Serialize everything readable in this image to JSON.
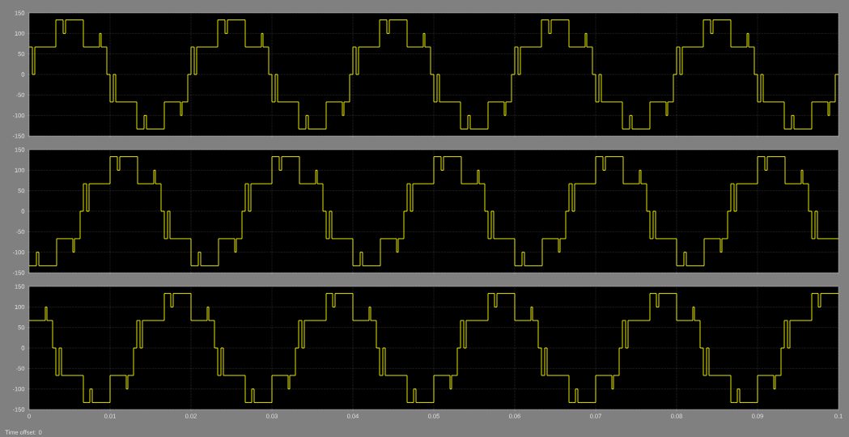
{
  "chart_data": [
    {
      "type": "step",
      "tick_labels": "y",
      "grid": true,
      "xlim": [
        0,
        0.1
      ],
      "ylim": [
        -150,
        150
      ],
      "xticks": [
        0,
        0.01,
        0.02,
        0.03,
        0.04,
        0.05,
        0.06,
        0.07,
        0.08,
        0.09,
        0.1
      ],
      "yticks": [
        -150,
        -100,
        -50,
        0,
        50,
        100,
        150
      ],
      "series": [
        {
          "color": "#ffff00",
          "x": [
            0,
            0.0004,
            0.0007,
            0.0033,
            0.0042,
            0.0045,
            0.0067,
            0.0087,
            0.0089,
            0.0096,
            0.01,
            0.0104,
            0.0107,
            0.0133,
            0.0142,
            0.0145,
            0.0167,
            0.0187,
            0.0189,
            0.0196,
            0.02,
            0.0204,
            0.0207,
            0.0233,
            0.0242,
            0.0245,
            0.0267,
            0.0287,
            0.0289,
            0.0296,
            0.03,
            0.0304,
            0.0307,
            0.0333,
            0.0342,
            0.0345,
            0.0367,
            0.0387,
            0.0389,
            0.0396,
            0.04,
            0.0404,
            0.0407,
            0.0433,
            0.0442,
            0.0445,
            0.0467,
            0.0487,
            0.0489,
            0.0496,
            0.05,
            0.0504,
            0.0507,
            0.0533,
            0.0542,
            0.0545,
            0.0567,
            0.0587,
            0.0589,
            0.0596,
            0.06,
            0.0604,
            0.0607,
            0.0633,
            0.0642,
            0.0645,
            0.0667,
            0.0687,
            0.0689,
            0.0696,
            0.07,
            0.0704,
            0.0707,
            0.0733,
            0.0742,
            0.0745,
            0.0767,
            0.0787,
            0.0789,
            0.0796,
            0.08,
            0.0804,
            0.0807,
            0.0833,
            0.0842,
            0.0845,
            0.0867,
            0.0887,
            0.0889,
            0.0896,
            0.09,
            0.0904,
            0.0907,
            0.0933,
            0.0942,
            0.0945,
            0.0967,
            0.0987,
            0.0989,
            0.0996,
            0.1
          ],
          "values": [
            67,
            0,
            67,
            133,
            100,
            133,
            67,
            100,
            67,
            0,
            -67,
            0,
            -67,
            -133,
            -100,
            -133,
            -67,
            -100,
            -67,
            0,
            67,
            0,
            67,
            133,
            100,
            133,
            67,
            100,
            67,
            0,
            -67,
            0,
            -67,
            -133,
            -100,
            -133,
            -67,
            -100,
            -67,
            0,
            67,
            0,
            67,
            133,
            100,
            133,
            67,
            100,
            67,
            0,
            -67,
            0,
            -67,
            -133,
            -100,
            -133,
            -67,
            -100,
            -67,
            0,
            67,
            0,
            67,
            133,
            100,
            133,
            67,
            100,
            67,
            0,
            -67,
            0,
            -67,
            -133,
            -100,
            -133,
            -67,
            -100,
            -67,
            0,
            67,
            0,
            67,
            133,
            100,
            133,
            67,
            100,
            67,
            0,
            -67,
            0,
            -67,
            -133,
            -100,
            -133,
            -67,
            -100,
            -67,
            0,
            0
          ]
        }
      ]
    },
    {
      "type": "step",
      "tick_labels": "y",
      "grid": true,
      "xlim": [
        0,
        0.1
      ],
      "ylim": [
        -150,
        150
      ],
      "xticks": [
        0,
        0.01,
        0.02,
        0.03,
        0.04,
        0.05,
        0.06,
        0.07,
        0.08,
        0.09,
        0.1
      ],
      "yticks": [
        -150,
        -100,
        -50,
        0,
        50,
        100,
        150
      ],
      "series": [
        {
          "color": "#ffff00",
          "x": [
            0,
            0.0009,
            0.0012,
            0.0034,
            0.0054,
            0.0056,
            0.0063,
            0.0067,
            0.0071,
            0.0074,
            0.01,
            0.0109,
            0.0112,
            0.0134,
            0.0154,
            0.0156,
            0.0163,
            0.0167,
            0.0171,
            0.0174,
            0.02,
            0.0209,
            0.0212,
            0.0234,
            0.0254,
            0.0256,
            0.0263,
            0.0267,
            0.0271,
            0.0274,
            0.03,
            0.0309,
            0.0312,
            0.0334,
            0.0354,
            0.0356,
            0.0363,
            0.0367,
            0.0371,
            0.0374,
            0.04,
            0.0409,
            0.0412,
            0.0434,
            0.0454,
            0.0456,
            0.0463,
            0.0467,
            0.0471,
            0.0474,
            0.05,
            0.0509,
            0.0512,
            0.0534,
            0.0554,
            0.0556,
            0.0563,
            0.0567,
            0.0571,
            0.0574,
            0.06,
            0.0609,
            0.0612,
            0.0634,
            0.0654,
            0.0656,
            0.0663,
            0.0667,
            0.0671,
            0.0674,
            0.07,
            0.0709,
            0.0712,
            0.0734,
            0.0754,
            0.0756,
            0.0763,
            0.0767,
            0.0771,
            0.0774,
            0.08,
            0.0809,
            0.0812,
            0.0834,
            0.0854,
            0.0856,
            0.0863,
            0.0867,
            0.0871,
            0.0874,
            0.09,
            0.0909,
            0.0912,
            0.0934,
            0.0954,
            0.0956,
            0.0963,
            0.0967,
            0.0971,
            0.0974,
            0.1
          ],
          "values": [
            -133,
            -100,
            -133,
            -67,
            -100,
            -67,
            0,
            67,
            0,
            67,
            133,
            100,
            133,
            67,
            100,
            67,
            0,
            -67,
            0,
            -67,
            -133,
            -100,
            -133,
            -67,
            -100,
            -67,
            0,
            67,
            0,
            67,
            133,
            100,
            133,
            67,
            100,
            67,
            0,
            -67,
            0,
            -67,
            -133,
            -100,
            -133,
            -67,
            -100,
            -67,
            0,
            67,
            0,
            67,
            133,
            100,
            133,
            67,
            100,
            67,
            0,
            -67,
            0,
            -67,
            -133,
            -100,
            -133,
            -67,
            -100,
            -67,
            0,
            67,
            0,
            67,
            133,
            100,
            133,
            67,
            100,
            67,
            0,
            -67,
            0,
            -67,
            -133,
            -100,
            -133,
            -67,
            -100,
            -67,
            0,
            67,
            0,
            67,
            133,
            100,
            133,
            67,
            100,
            67,
            0,
            -67,
            0,
            -67,
            -67
          ]
        }
      ]
    },
    {
      "type": "step",
      "grid": true,
      "xlim": [
        0,
        0.1
      ],
      "ylim": [
        -150,
        150
      ],
      "xticks": [
        0,
        0.01,
        0.02,
        0.03,
        0.04,
        0.05,
        0.06,
        0.07,
        0.08,
        0.09,
        0.1
      ],
      "yticks": [
        -150,
        -100,
        -50,
        0,
        50,
        100,
        150
      ],
      "annotations": [
        "Time offset:  0"
      ],
      "series": [
        {
          "color": "#ffff00",
          "x": [
            0,
            0.002,
            0.0022,
            0.0029,
            0.0033,
            0.0037,
            0.004,
            0.0067,
            0.0075,
            0.0078,
            0.01,
            0.012,
            0.0122,
            0.0129,
            0.0133,
            0.0137,
            0.014,
            0.0167,
            0.0175,
            0.0178,
            0.02,
            0.022,
            0.0222,
            0.0229,
            0.0233,
            0.0237,
            0.024,
            0.0267,
            0.0275,
            0.0278,
            0.03,
            0.032,
            0.0322,
            0.0329,
            0.0333,
            0.0337,
            0.034,
            0.0367,
            0.0375,
            0.0378,
            0.04,
            0.042,
            0.0422,
            0.0429,
            0.0433,
            0.0437,
            0.044,
            0.0467,
            0.0475,
            0.0478,
            0.05,
            0.052,
            0.0522,
            0.0529,
            0.0533,
            0.0537,
            0.054,
            0.0567,
            0.0575,
            0.0578,
            0.06,
            0.062,
            0.0622,
            0.0629,
            0.0633,
            0.0637,
            0.064,
            0.0667,
            0.0675,
            0.0678,
            0.07,
            0.072,
            0.0722,
            0.0729,
            0.0733,
            0.0737,
            0.074,
            0.0767,
            0.0775,
            0.0778,
            0.08,
            0.082,
            0.0822,
            0.0829,
            0.0833,
            0.0837,
            0.084,
            0.0867,
            0.0875,
            0.0878,
            0.09,
            0.092,
            0.0922,
            0.0929,
            0.0933,
            0.0937,
            0.094,
            0.0967,
            0.0975,
            0.0978,
            0.1
          ],
          "values": [
            67,
            100,
            67,
            0,
            -67,
            0,
            -67,
            -133,
            -100,
            -133,
            -67,
            -100,
            -67,
            0,
            67,
            0,
            67,
            133,
            100,
            133,
            67,
            100,
            67,
            0,
            -67,
            0,
            -67,
            -133,
            -100,
            -133,
            -67,
            -100,
            -67,
            0,
            67,
            0,
            67,
            133,
            100,
            133,
            67,
            100,
            67,
            0,
            -67,
            0,
            -67,
            -133,
            -100,
            -133,
            -67,
            -100,
            -67,
            0,
            67,
            0,
            67,
            133,
            100,
            133,
            67,
            100,
            67,
            0,
            -67,
            0,
            -67,
            -133,
            -100,
            -133,
            -67,
            -100,
            -67,
            0,
            67,
            0,
            67,
            133,
            100,
            133,
            67,
            100,
            67,
            0,
            -67,
            0,
            -67,
            -133,
            -100,
            -133,
            -67,
            -100,
            -67,
            0,
            67,
            0,
            67,
            133,
            100,
            133,
            133
          ]
        }
      ]
    }
  ]
}
